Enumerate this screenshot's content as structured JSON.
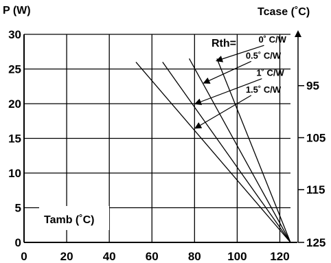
{
  "chart_data": {
    "type": "line",
    "ylabel": "P (W)",
    "y2label": "Tcase (˚C)",
    "xlabel": "Tamb (˚C)",
    "rth_label": "Rth=",
    "xlim": [
      0,
      125
    ],
    "ylim": [
      0,
      30
    ],
    "x_ticks": [
      0,
      20,
      40,
      60,
      80,
      100,
      120
    ],
    "y_ticks": [
      0,
      5,
      10,
      15,
      20,
      25,
      30
    ],
    "y2_ticks": [
      {
        "label": "95",
        "at": 22.6
      },
      {
        "label": "105",
        "at": 15.1
      },
      {
        "label": "115",
        "at": 7.6
      },
      {
        "label": "125",
        "at": 0
      }
    ],
    "grid": true,
    "series": [
      {
        "name": "0˚ C/W",
        "x": [
          90.5,
          125
        ],
        "y": [
          26.5,
          0
        ]
      },
      {
        "name": "0.5˚ C/W",
        "x": [
          77.5,
          125
        ],
        "y": [
          26.5,
          0
        ]
      },
      {
        "name": "1˚ C/W",
        "x": [
          65,
          125
        ],
        "y": [
          26,
          0
        ]
      },
      {
        "name": "1.5˚ C/W",
        "x": [
          52.5,
          125
        ],
        "y": [
          26,
          0
        ]
      }
    ],
    "annotations": [
      {
        "series": 0,
        "text_x": 110,
        "text_y": 28.8,
        "arrow_to_x": 90.5,
        "arrow_to_y": 26.2
      },
      {
        "series": 1,
        "text_x": 104,
        "text_y": 26.5,
        "arrow_to_x": 84.5,
        "arrow_to_y": 23
      },
      {
        "series": 2,
        "text_x": 109,
        "text_y": 24,
        "arrow_to_x": 80.5,
        "arrow_to_y": 20
      },
      {
        "series": 3,
        "text_x": 104,
        "text_y": 21.6,
        "arrow_to_x": 80.5,
        "arrow_to_y": 16.5
      }
    ]
  }
}
